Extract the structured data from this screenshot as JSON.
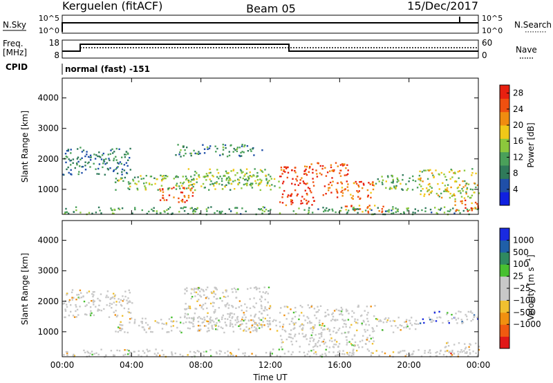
{
  "header": {
    "station": "Kerguelen (fitACF)",
    "beam": "Beam 05",
    "date": "15/Dec/2017"
  },
  "status_panels": {
    "nsky": {
      "left_label": "N.Sky",
      "left_ticks": [
        "10^5",
        "10^0"
      ],
      "right_label": "N.Search",
      "right_ticks": [
        "10^5",
        "10^0"
      ]
    },
    "freq": {
      "left_label_top": "Freq.",
      "left_label_bottom": "[MHz]",
      "left_ticks": [
        "18",
        "8"
      ],
      "right_label": "Nave",
      "right_ticks": [
        "60",
        "0"
      ]
    },
    "cpid": {
      "label": "CPID",
      "value": "normal (fast) -151"
    }
  },
  "colors": {
    "power_scale": [
      "#1020e0",
      "#1f4fa8",
      "#2f7a5a",
      "#4aa05a",
      "#8cc83c",
      "#f0c818",
      "#f08c10",
      "#f05010",
      "#e82010"
    ],
    "velocity_scale": [
      "#e01818",
      "#f05a10",
      "#f09010",
      "#f0c030",
      "#c8c8c8",
      "#c8c8c8",
      "#48c030",
      "#2f8a60",
      "#1f5fa8",
      "#1a2ae0"
    ]
  },
  "chart_data": [
    {
      "type": "heatmap",
      "name": "power",
      "ylabel": "Slant Range [km]",
      "xlabel": "Time UT",
      "x_ticks": [
        "00:00",
        "04:00",
        "08:00",
        "12:00",
        "16:00",
        "20:00",
        "00:00"
      ],
      "x_range_hours": [
        0,
        24
      ],
      "y_ticks": [
        1000,
        2000,
        3000,
        4000
      ],
      "y_range_km": [
        180,
        4650
      ],
      "colorbar": {
        "label": "Power [dB]",
        "ticks": [
          4,
          8,
          12,
          16,
          20,
          24,
          28
        ],
        "range": [
          0,
          30
        ]
      },
      "features": [
        {
          "t0": 0.0,
          "t1": 24.0,
          "r0": 200,
          "r1": 450,
          "level": 0.35
        },
        {
          "t0": 0.0,
          "t1": 4.0,
          "r0": 1500,
          "r1": 2400,
          "level": 0.25
        },
        {
          "t0": 3.0,
          "t1": 12.5,
          "r0": 1000,
          "r1": 1500,
          "level": 0.45
        },
        {
          "t0": 5.5,
          "t1": 7.5,
          "r0": 600,
          "r1": 1100,
          "level": 0.9
        },
        {
          "t0": 7.0,
          "t1": 12.0,
          "r0": 1200,
          "r1": 1700,
          "level": 0.5
        },
        {
          "t0": 6.5,
          "t1": 11.5,
          "r0": 2100,
          "r1": 2500,
          "level": 0.3
        },
        {
          "t0": 12.5,
          "t1": 14.5,
          "r0": 500,
          "r1": 1800,
          "level": 0.95
        },
        {
          "t0": 14.0,
          "t1": 16.5,
          "r0": 1400,
          "r1": 1900,
          "level": 0.9
        },
        {
          "t0": 15.0,
          "t1": 18.0,
          "r0": 700,
          "r1": 1300,
          "level": 0.85
        },
        {
          "t0": 16.0,
          "t1": 18.5,
          "r0": 250,
          "r1": 500,
          "level": 0.8
        },
        {
          "t0": 18.0,
          "t1": 20.5,
          "r0": 1000,
          "r1": 1500,
          "level": 0.4
        },
        {
          "t0": 20.5,
          "t1": 24.0,
          "r0": 700,
          "r1": 1700,
          "level": 0.55
        },
        {
          "t0": 22.5,
          "t1": 24.0,
          "r0": 300,
          "r1": 700,
          "level": 0.85
        }
      ]
    },
    {
      "type": "heatmap",
      "name": "velocity",
      "ylabel": "Slant Range [km]",
      "xlabel": "Time UT",
      "x_ticks": [
        "00:00",
        "04:00",
        "08:00",
        "12:00",
        "16:00",
        "20:00",
        "00:00"
      ],
      "x_range_hours": [
        0,
        24
      ],
      "y_ticks": [
        1000,
        2000,
        3000,
        4000
      ],
      "y_range_km": [
        180,
        4650
      ],
      "colorbar": {
        "label": "Velocity [m s^-1]",
        "ticks": [
          "1000",
          "500",
          "100",
          "25",
          "−25",
          "−100",
          "−500",
          "−1000"
        ]
      },
      "features": [
        {
          "t0": 0.0,
          "t1": 24.0,
          "r0": 200,
          "r1": 450,
          "level": 0.5
        },
        {
          "t0": 0.0,
          "t1": 4.0,
          "r0": 1500,
          "r1": 2400,
          "level": 0.5
        },
        {
          "t0": 3.0,
          "t1": 12.5,
          "r0": 1000,
          "r1": 1500,
          "level": 0.5
        },
        {
          "t0": 7.0,
          "t1": 12.0,
          "r0": 1200,
          "r1": 2500,
          "level": 0.5
        },
        {
          "t0": 12.5,
          "t1": 18.0,
          "r0": 500,
          "r1": 1900,
          "level": 0.5
        },
        {
          "t0": 18.0,
          "t1": 20.5,
          "r0": 1000,
          "r1": 1500,
          "level": 0.5
        },
        {
          "t0": 20.5,
          "t1": 24.0,
          "r0": 1300,
          "r1": 1700,
          "level": 0.85
        },
        {
          "t0": 22.0,
          "t1": 24.0,
          "r0": 300,
          "r1": 700,
          "level": 0.35
        }
      ]
    }
  ]
}
